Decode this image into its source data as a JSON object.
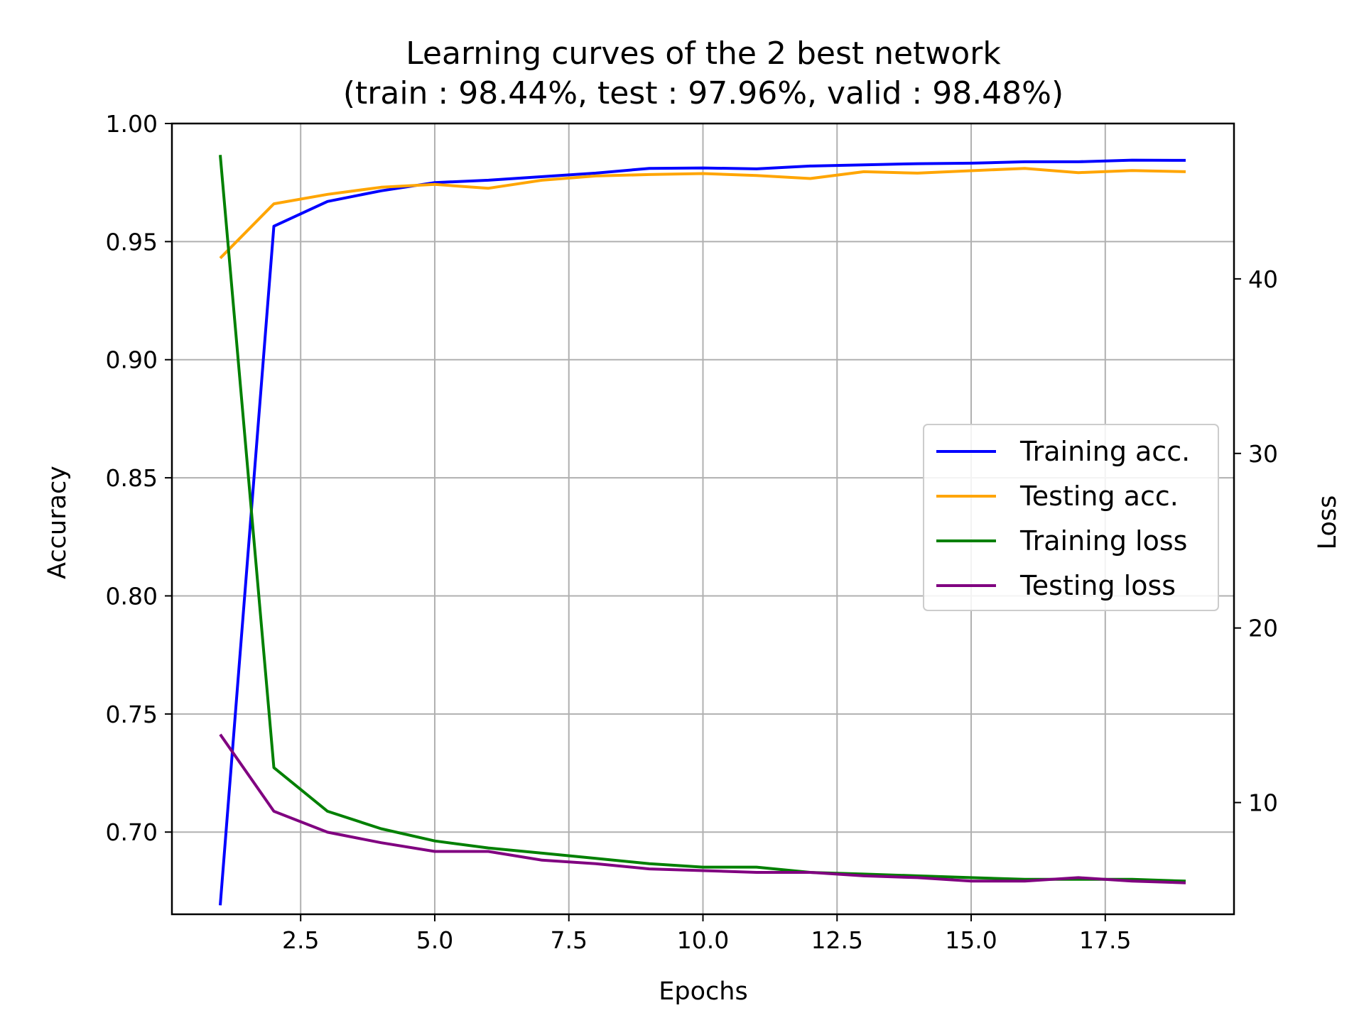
{
  "chart_data": {
    "type": "line",
    "title": "Learning curves of the 2 best network",
    "subtitle": "(train : 98.44%, test : 97.96%, valid : 98.48%)",
    "xlabel": "Epochs",
    "ylabel": "Accuracy",
    "y2label": "Loss",
    "xlim": [
      0.1,
      19.9
    ],
    "ylim": [
      0.6652,
      1.0
    ],
    "y2lim": [
      3.6,
      48.9
    ],
    "xticks": [
      "2.5",
      "5.0",
      "7.5",
      "10.0",
      "12.5",
      "15.0",
      "17.5"
    ],
    "yticks": [
      "0.70",
      "0.75",
      "0.80",
      "0.85",
      "0.90",
      "0.95",
      "1.00"
    ],
    "y2ticks": [
      "10",
      "20",
      "30",
      "40"
    ],
    "grid": true,
    "legend_position": "center-right",
    "x": [
      1,
      2,
      3,
      4,
      5,
      6,
      7,
      8,
      9,
      10,
      11,
      12,
      13,
      14,
      15,
      16,
      17,
      18,
      19
    ],
    "series": [
      {
        "name": "Training acc.",
        "axis": "left",
        "color": "#0000ff",
        "values": [
          0.669,
          0.9565,
          0.967,
          0.9715,
          0.975,
          0.976,
          0.9775,
          0.979,
          0.981,
          0.9812,
          0.9808,
          0.982,
          0.9825,
          0.983,
          0.9832,
          0.9838,
          0.9838,
          0.9845,
          0.9844
        ]
      },
      {
        "name": "Testing acc.",
        "axis": "left",
        "color": "#ffa500",
        "values": [
          0.943,
          0.966,
          0.97,
          0.973,
          0.9742,
          0.9726,
          0.976,
          0.9778,
          0.9784,
          0.9788,
          0.978,
          0.9767,
          0.9796,
          0.979,
          0.98,
          0.981,
          0.9792,
          0.9801,
          0.9796
        ]
      },
      {
        "name": "Training loss",
        "axis": "right",
        "color": "#008000",
        "values": [
          47.1,
          12.0,
          9.5,
          8.5,
          7.8,
          7.4,
          7.1,
          6.8,
          6.5,
          6.3,
          6.3,
          6.0,
          5.9,
          5.8,
          5.7,
          5.6,
          5.6,
          5.6,
          5.5
        ]
      },
      {
        "name": "Testing loss",
        "axis": "right",
        "color": "#800080",
        "values": [
          13.9,
          9.5,
          8.3,
          7.7,
          7.2,
          7.2,
          6.7,
          6.5,
          6.2,
          6.1,
          6.0,
          6.0,
          5.8,
          5.7,
          5.5,
          5.5,
          5.7,
          5.5,
          5.4
        ]
      }
    ]
  }
}
